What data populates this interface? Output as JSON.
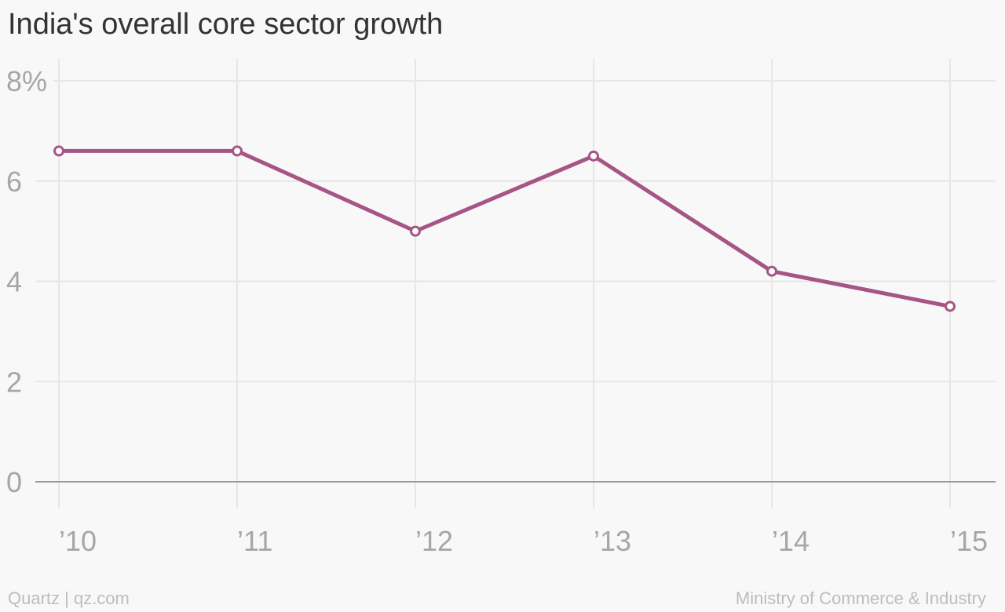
{
  "title": "India's overall core sector growth",
  "footer": {
    "source_left": "Quartz | qz.com",
    "source_right": "Ministry of Commerce & Industry"
  },
  "colors": {
    "line": "#a65585",
    "grid": "#e6e6e6",
    "axis": "#999999",
    "text": "#a6a6a6",
    "background": "#f8f8f8"
  },
  "chart_data": {
    "type": "line",
    "title": "India's overall core sector growth",
    "categories": [
      "’10",
      "’11",
      "’12",
      "’13",
      "’14",
      "’15"
    ],
    "y_tick_labels": [
      "0",
      "2",
      "4",
      "6",
      "8%"
    ],
    "series": [
      {
        "values": [
          6.6,
          6.6,
          5.0,
          6.5,
          4.2,
          3.5
        ]
      }
    ],
    "ylim": [
      0,
      8
    ],
    "y_ticks": [
      0,
      2,
      4,
      6,
      8
    ],
    "grid": true,
    "legend": "none"
  }
}
